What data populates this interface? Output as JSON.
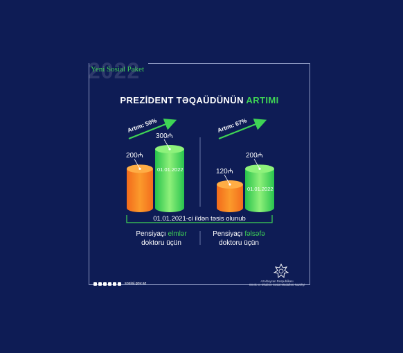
{
  "brand": {
    "year": "2022",
    "package": "Yeni Sosial Paket"
  },
  "title": {
    "main": "PREZİDENT TƏQAÜDÜNÜN",
    "accent": "ARTIMI"
  },
  "chart_data": [
    {
      "type": "bar",
      "categories": [
        "",
        "01.01.2022"
      ],
      "values": [
        200,
        300
      ],
      "value_labels": [
        "200₼",
        "300₼"
      ],
      "growth_label": "Artım: 50%",
      "group_label_prefix": "Pensiyaçı",
      "group_label_accent": "elmlər",
      "group_label_suffix": "doktoru üçün",
      "colors": [
        "#f57f22",
        "#3fd455"
      ]
    },
    {
      "type": "bar",
      "categories": [
        "",
        "01.01.2022"
      ],
      "values": [
        120,
        200
      ],
      "value_labels": [
        "120₼",
        "200₼"
      ],
      "growth_label": "Artım: 67%",
      "group_label_prefix": "Pensiyaçı",
      "group_label_accent": "fəlsəfə",
      "group_label_suffix": "doktoru üçün",
      "colors": [
        "#f57f22",
        "#3fd455"
      ]
    }
  ],
  "established": "01.01.2021-ci ildən təsis olunub",
  "footer": {
    "url": "sosial.gov.az",
    "social_icons": [
      "facebook-icon",
      "instagram-icon",
      "twitter-icon",
      "youtube-icon",
      "telegram-icon",
      "linkedin-icon"
    ],
    "ministry_line1": "Azərbaycan Respublikası",
    "ministry_line2": "Əmək və Əhalinin Sosial Müdafiəsi Nazirliyi"
  }
}
